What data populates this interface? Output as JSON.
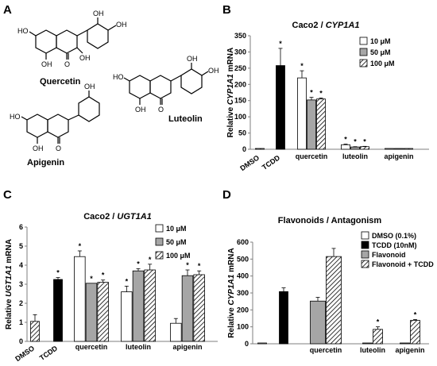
{
  "panels": {
    "A": {
      "label": "A",
      "compounds": [
        "Quercetin",
        "Luteolin",
        "Apigenin"
      ],
      "atoms": {
        "oh": "OH",
        "o": "O",
        "ho": "HO"
      }
    }
  },
  "chart_data": [
    {
      "panel": "B",
      "type": "bar",
      "title": "Caco2 / CYP1A1",
      "title_plain": "Caco2 / ",
      "title_gene": "CYP1A1",
      "ylabel_pre": "Relative ",
      "ylabel_gene": "CYP1A1",
      "ylabel_post": " mRNA",
      "ylim": [
        0,
        350
      ],
      "yticks": [
        "0",
        "50",
        "100",
        "150",
        "200",
        "250",
        "300",
        "350"
      ],
      "categories": [
        "DMSO",
        "TCDD",
        "quercetin",
        "luteolin",
        "apigenin"
      ],
      "legend": {
        "position": "top-right",
        "entries": [
          "10 μM",
          "50 μM",
          "100 μM"
        ]
      },
      "bars": [
        {
          "cat": 0,
          "style": "hatch",
          "value": 1,
          "error": 0,
          "sig": false
        },
        {
          "cat": 1,
          "style": "black",
          "value": 258,
          "error": 53,
          "sig": true
        },
        {
          "cat": 2,
          "style": "white",
          "value": 220,
          "error": 22,
          "sig": true
        },
        {
          "cat": 2,
          "style": "gray",
          "value": 152,
          "error": 8,
          "sig": true
        },
        {
          "cat": 2,
          "style": "hatch",
          "value": 155,
          "error": 3,
          "sig": true
        },
        {
          "cat": 3,
          "style": "white",
          "value": 14,
          "error": 2,
          "sig": true
        },
        {
          "cat": 3,
          "style": "gray",
          "value": 7,
          "error": 1,
          "sig": true
        },
        {
          "cat": 3,
          "style": "hatch",
          "value": 8,
          "error": 1,
          "sig": true
        },
        {
          "cat": 4,
          "style": "white",
          "value": 2,
          "error": 0,
          "sig": false
        },
        {
          "cat": 4,
          "style": "gray",
          "value": 2,
          "error": 0,
          "sig": false
        },
        {
          "cat": 4,
          "style": "hatch",
          "value": 2,
          "error": 0,
          "sig": false
        }
      ],
      "sig_mark": "*"
    },
    {
      "panel": "C",
      "type": "bar",
      "title": "Caco2 / UGT1A1",
      "title_plain": "Caco2 / ",
      "title_gene": "UGT1A1",
      "ylabel_pre": "Relative ",
      "ylabel_gene": "UGT1A1",
      "ylabel_post": " mRNA",
      "ylim": [
        0,
        6
      ],
      "yticks": [
        "0",
        "1",
        "2",
        "3",
        "4",
        "5",
        "6"
      ],
      "categories": [
        "DMSO",
        "TCDD",
        "quercetin",
        "luteolin",
        "apigenin"
      ],
      "legend": {
        "position": "top-right",
        "entries": [
          "10 μM",
          "50 μM",
          "100 μM"
        ]
      },
      "bars": [
        {
          "cat": 0,
          "style": "hatch",
          "value": 1.05,
          "error": 0.35,
          "sig": false
        },
        {
          "cat": 1,
          "style": "black",
          "value": 3.25,
          "error": 0.1,
          "sig": true
        },
        {
          "cat": 2,
          "style": "white",
          "value": 4.45,
          "error": 0.3,
          "sig": true
        },
        {
          "cat": 2,
          "style": "gray",
          "value": 3.05,
          "error": 0.0,
          "sig": true
        },
        {
          "cat": 2,
          "style": "hatch",
          "value": 3.1,
          "error": 0.12,
          "sig": true
        },
        {
          "cat": 3,
          "style": "white",
          "value": 2.6,
          "error": 0.3,
          "sig": true
        },
        {
          "cat": 3,
          "style": "gray",
          "value": 3.7,
          "error": 0.12,
          "sig": true
        },
        {
          "cat": 3,
          "style": "hatch",
          "value": 3.75,
          "error": 0.3,
          "sig": true
        },
        {
          "cat": 4,
          "style": "white",
          "value": 0.95,
          "error": 0.25,
          "sig": false
        },
        {
          "cat": 4,
          "style": "gray",
          "value": 3.45,
          "error": 0.3,
          "sig": true
        },
        {
          "cat": 4,
          "style": "hatch",
          "value": 3.5,
          "error": 0.2,
          "sig": true
        }
      ],
      "sig_mark": "*"
    },
    {
      "panel": "D",
      "type": "bar",
      "title": "Flavonoids / Antagonism",
      "title_plain": "Flavonoids / Antagonism",
      "title_gene": "",
      "ylabel_pre": "Relative ",
      "ylabel_gene": "CYP1A1",
      "ylabel_post": " mRNA",
      "ylim": [
        0,
        600
      ],
      "yticks": [
        "0",
        "100",
        "200",
        "300",
        "400",
        "500",
        "600"
      ],
      "categories": [
        "",
        "",
        "quercetin",
        "luteolin",
        "apigenin"
      ],
      "legend": {
        "position": "top-right",
        "entries": [
          "DMSO (0.1%)",
          "TCDD (10nM)",
          "Flavonoid",
          "Flavonoid + TCDD"
        ]
      },
      "bars": [
        {
          "cat": 0,
          "style": "white",
          "value": 1,
          "error": 0,
          "sig": false
        },
        {
          "cat": 1,
          "style": "black",
          "value": 308,
          "error": 22,
          "sig": false
        },
        {
          "cat": 2,
          "style": "gray",
          "value": 252,
          "error": 22,
          "sig": false
        },
        {
          "cat": 2,
          "style": "hatch",
          "value": 515,
          "error": 48,
          "sig": false
        },
        {
          "cat": 3,
          "style": "gray",
          "value": 1,
          "error": 0,
          "sig": false
        },
        {
          "cat": 3,
          "style": "hatch",
          "value": 85,
          "error": 15,
          "sig": true
        },
        {
          "cat": 4,
          "style": "gray",
          "value": 1,
          "error": 0,
          "sig": false
        },
        {
          "cat": 4,
          "style": "hatch",
          "value": 138,
          "error": 5,
          "sig": true
        }
      ],
      "sig_mark": "*"
    }
  ]
}
